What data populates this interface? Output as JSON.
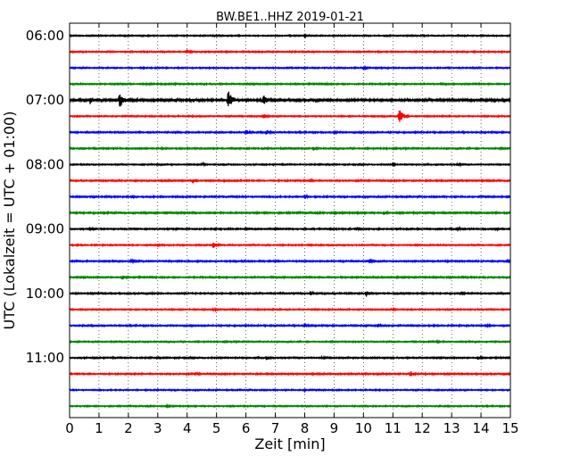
{
  "chart_data": {
    "type": "line",
    "title": "BW.BE1..HHZ 2019-01-21",
    "xlabel": "Zeit  [min]",
    "ylabel": "UTC (Lokalzeit = UTC + 01:00)",
    "xlim": [
      0,
      15
    ],
    "x_ticks": [
      "0",
      "1",
      "2",
      "3",
      "4",
      "5",
      "6",
      "7",
      "8",
      "9",
      "10",
      "11",
      "12",
      "13",
      "14",
      "15"
    ],
    "y_tick_labels": [
      "06:00",
      "07:00",
      "08:00",
      "09:00",
      "10:00",
      "11:00"
    ],
    "grid": "vertical dotted at each minute",
    "trace_colors": [
      "#000000",
      "#ff0000",
      "#0000ff",
      "#008000"
    ],
    "traces": [
      {
        "start": "06:00",
        "noise": 0.8,
        "events": [
          {
            "t": 8.0,
            "amp": 1.5
          }
        ]
      },
      {
        "start": "06:15",
        "noise": 0.8,
        "events": [
          {
            "t": 4.0,
            "amp": 2.5
          },
          {
            "t": 10.5,
            "amp": 1.5
          }
        ]
      },
      {
        "start": "06:30",
        "noise": 0.8,
        "events": [
          {
            "t": 10.0,
            "amp": 2.5
          },
          {
            "t": 2.5,
            "amp": 1.2
          }
        ]
      },
      {
        "start": "06:45",
        "noise": 0.9,
        "events": [
          {
            "t": 8.7,
            "amp": 1.8
          }
        ]
      },
      {
        "start": "07:00",
        "noise": 1.4,
        "events": [
          {
            "t": 0.7,
            "amp": 5
          },
          {
            "t": 1.7,
            "amp": 9
          },
          {
            "t": 4.2,
            "amp": 3
          },
          {
            "t": 5.4,
            "amp": 12
          },
          {
            "t": 6.6,
            "amp": 7
          },
          {
            "t": 8.0,
            "amp": 3
          },
          {
            "t": 11.5,
            "amp": 2.5
          }
        ]
      },
      {
        "start": "07:15",
        "noise": 0.8,
        "events": [
          {
            "t": 6.6,
            "amp": 3
          },
          {
            "t": 11.2,
            "amp": 9
          }
        ]
      },
      {
        "start": "07:30",
        "noise": 0.9,
        "events": [
          {
            "t": 6.0,
            "amp": 3
          },
          {
            "t": 6.7,
            "amp": 3
          },
          {
            "t": 9.0,
            "amp": 2
          }
        ]
      },
      {
        "start": "07:45",
        "noise": 0.9,
        "events": [
          {
            "t": 8.3,
            "amp": 2.5
          }
        ]
      },
      {
        "start": "08:00",
        "noise": 0.8,
        "events": [
          {
            "t": 4.5,
            "amp": 2
          },
          {
            "t": 11.0,
            "amp": 1.8
          },
          {
            "t": 13.2,
            "amp": 2.5
          }
        ]
      },
      {
        "start": "08:15",
        "noise": 0.9,
        "events": [
          {
            "t": 4.2,
            "amp": 3
          },
          {
            "t": 8.2,
            "amp": 2
          }
        ]
      },
      {
        "start": "08:30",
        "noise": 0.9,
        "events": [
          {
            "t": 2.1,
            "amp": 2
          },
          {
            "t": 8.0,
            "amp": 2
          }
        ]
      },
      {
        "start": "08:45",
        "noise": 1.0,
        "events": [
          {
            "t": 10.7,
            "amp": 2.5
          },
          {
            "t": 9.0,
            "amp": 1.8
          }
        ]
      },
      {
        "start": "09:00",
        "noise": 0.9,
        "events": [
          {
            "t": 0.7,
            "amp": 2
          },
          {
            "t": 6.0,
            "amp": 1.8
          },
          {
            "t": 9.8,
            "amp": 1.8
          },
          {
            "t": 13.2,
            "amp": 2
          },
          {
            "t": 14.5,
            "amp": 2
          }
        ]
      },
      {
        "start": "09:15",
        "noise": 0.8,
        "events": [
          {
            "t": 4.9,
            "amp": 4
          },
          {
            "t": 3.0,
            "amp": 1.5
          }
        ]
      },
      {
        "start": "09:30",
        "noise": 0.9,
        "events": [
          {
            "t": 2.1,
            "amp": 2.5
          },
          {
            "t": 10.2,
            "amp": 3
          },
          {
            "t": 12.8,
            "amp": 1.8
          },
          {
            "t": 14.9,
            "amp": 2
          }
        ]
      },
      {
        "start": "09:45",
        "noise": 0.9,
        "events": [
          {
            "t": 1.8,
            "amp": 3
          }
        ]
      },
      {
        "start": "10:00",
        "noise": 0.9,
        "events": [
          {
            "t": 8.2,
            "amp": 2.5
          },
          {
            "t": 10.1,
            "amp": 4
          },
          {
            "t": 13.3,
            "amp": 2
          }
        ]
      },
      {
        "start": "10:15",
        "noise": 0.8,
        "events": [
          {
            "t": 4.9,
            "amp": 2
          },
          {
            "t": 11.0,
            "amp": 1.5
          }
        ]
      },
      {
        "start": "10:30",
        "noise": 0.9,
        "events": [
          {
            "t": 8.0,
            "amp": 3
          },
          {
            "t": 10.5,
            "amp": 2.5
          },
          {
            "t": 14.2,
            "amp": 2.5
          }
        ]
      },
      {
        "start": "10:45",
        "noise": 0.8,
        "events": [
          {
            "t": 12.5,
            "amp": 1.5
          }
        ]
      },
      {
        "start": "11:00",
        "noise": 0.9,
        "events": [
          {
            "t": 6.7,
            "amp": 2.5
          },
          {
            "t": 8.6,
            "amp": 2
          },
          {
            "t": 13.9,
            "amp": 2.5
          }
        ]
      },
      {
        "start": "11:15",
        "noise": 0.9,
        "events": [
          {
            "t": 4.3,
            "amp": 2.5
          },
          {
            "t": 11.6,
            "amp": 4
          }
        ]
      },
      {
        "start": "11:30",
        "noise": 0.8,
        "events": [
          {
            "t": 8.0,
            "amp": 1.5
          }
        ]
      },
      {
        "start": "11:45",
        "noise": 0.8,
        "events": [
          {
            "t": 3.3,
            "amp": 1.8
          }
        ]
      }
    ]
  }
}
